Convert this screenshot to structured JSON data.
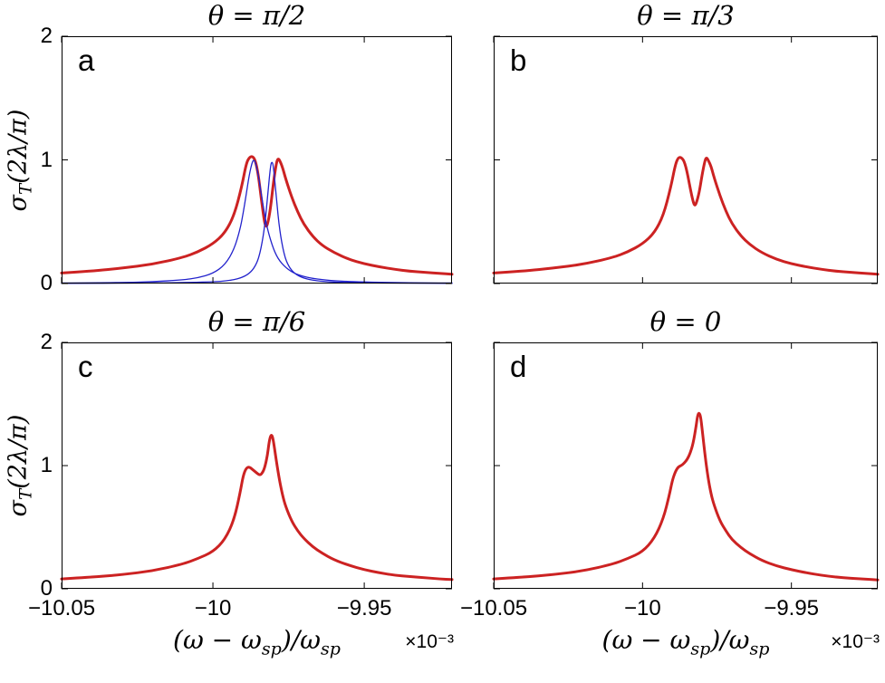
{
  "figure": {
    "background": "#ffffff",
    "axis_color": "#000000"
  },
  "chart_data": {
    "type": "line",
    "xlim": [
      -10.05,
      -9.921
    ],
    "ylim": [
      0,
      2
    ],
    "x_ticks": [
      -10.05,
      -10,
      -9.95
    ],
    "x_tick_labels": [
      "−10.05",
      "−10",
      "−9.95"
    ],
    "y_ticks": [
      0,
      1,
      2
    ],
    "y_tick_labels": [
      "0",
      "1",
      "2"
    ],
    "x_scale_note": "x values are in units of 10^-3",
    "xlabel_segments": [
      {
        "t": "(ω − ω"
      },
      {
        "t": "sp",
        "sub": true
      },
      {
        "t": ")/ω"
      },
      {
        "t": "sp",
        "sub": true
      }
    ],
    "xlabel_multiplier": "×10⁻³",
    "ylabel_segments": [
      {
        "t": "σ"
      },
      {
        "t": "T",
        "sub": true
      },
      {
        "t": "(2λ/π)"
      }
    ],
    "colors": {
      "total_cross_section": "#cc2222",
      "partial_lorentzians": "#2222cc"
    },
    "grid": false,
    "legend": "none",
    "panels": [
      {
        "letter": "a",
        "title": "θ = π/2",
        "series": [
          {
            "name": "total-cross-section",
            "color": "#cc2222",
            "width": 3,
            "dash": null,
            "points": [
              [
                -10.05,
                0.085
              ],
              [
                -10.04,
                0.1
              ],
              [
                -10.03,
                0.125
              ],
              [
                -10.02,
                0.155
              ],
              [
                -10.01,
                0.21
              ],
              [
                -10.005,
                0.255
              ],
              [
                -10.0,
                0.32
              ],
              [
                -9.996,
                0.41
              ],
              [
                -9.993,
                0.55
              ],
              [
                -9.9905,
                0.78
              ],
              [
                -9.989,
                0.97
              ],
              [
                -9.988,
                1.02
              ],
              [
                -9.987,
                1.03
              ],
              [
                -9.986,
                1.0
              ],
              [
                -9.985,
                0.88
              ],
              [
                -9.984,
                0.68
              ],
              [
                -9.983,
                0.5
              ],
              [
                -9.9825,
                0.46
              ],
              [
                -9.982,
                0.47
              ],
              [
                -9.981,
                0.6
              ],
              [
                -9.98,
                0.82
              ],
              [
                -9.979,
                0.98
              ],
              [
                -9.9785,
                1.01
              ],
              [
                -9.978,
                1.0
              ],
              [
                -9.977,
                0.94
              ],
              [
                -9.976,
                0.85
              ],
              [
                -9.974,
                0.7
              ],
              [
                -9.972,
                0.58
              ],
              [
                -9.97,
                0.48
              ],
              [
                -9.967,
                0.38
              ],
              [
                -9.964,
                0.31
              ],
              [
                -9.96,
                0.25
              ],
              [
                -9.955,
                0.195
              ],
              [
                -9.95,
                0.16
              ],
              [
                -9.945,
                0.135
              ],
              [
                -9.94,
                0.115
              ],
              [
                -9.935,
                0.1
              ],
              [
                -9.93,
                0.09
              ],
              [
                -9.925,
                0.082
              ],
              [
                -9.921,
                0.075
              ]
            ]
          },
          {
            "name": "partial-lorentzian-broad",
            "color": "#2222cc",
            "width": 1.3,
            "dash": "8 6",
            "points": [
              [
                -10.05,
                0.004
              ],
              [
                -10.03,
                0.008
              ],
              [
                -10.02,
                0.014
              ],
              [
                -10.01,
                0.029
              ],
              [
                -10.005,
                0.046
              ],
              [
                -10.0,
                0.081
              ],
              [
                -9.996,
                0.151
              ],
              [
                -9.993,
                0.275
              ],
              [
                -9.991,
                0.44
              ],
              [
                -9.99,
                0.57
              ],
              [
                -9.989,
                0.72
              ],
              [
                -9.988,
                0.88
              ],
              [
                -9.987,
                0.985
              ],
              [
                -9.9865,
                1.0
              ],
              [
                -9.986,
                0.985
              ],
              [
                -9.985,
                0.88
              ],
              [
                -9.984,
                0.72
              ],
              [
                -9.983,
                0.57
              ],
              [
                -9.982,
                0.44
              ],
              [
                -9.98,
                0.275
              ],
              [
                -9.978,
                0.18
              ],
              [
                -9.975,
                0.108
              ],
              [
                -9.972,
                0.071
              ],
              [
                -9.968,
                0.045
              ],
              [
                -9.963,
                0.028
              ],
              [
                -9.957,
                0.018
              ],
              [
                -9.95,
                0.012
              ],
              [
                -9.94,
                0.007
              ],
              [
                -9.93,
                0.005
              ],
              [
                -9.921,
                0.004
              ]
            ]
          },
          {
            "name": "partial-lorentzian-narrow",
            "color": "#2222cc",
            "width": 1.3,
            "dash": "8 6",
            "points": [
              [
                -10.05,
                0.001
              ],
              [
                -10.02,
                0.003
              ],
              [
                -10.0,
                0.013
              ],
              [
                -9.995,
                0.022
              ],
              [
                -9.991,
                0.042
              ],
              [
                -9.988,
                0.079
              ],
              [
                -9.986,
                0.138
              ],
              [
                -9.9845,
                0.232
              ],
              [
                -9.983,
                0.436
              ],
              [
                -9.982,
                0.682
              ],
              [
                -9.981,
                0.95
              ],
              [
                -9.9805,
                0.99
              ],
              [
                -9.98,
                0.95
              ],
              [
                -9.979,
                0.682
              ],
              [
                -9.978,
                0.436
              ],
              [
                -9.9765,
                0.232
              ],
              [
                -9.975,
                0.138
              ],
              [
                -9.973,
                0.079
              ],
              [
                -9.97,
                0.042
              ],
              [
                -9.966,
                0.022
              ],
              [
                -9.96,
                0.011
              ],
              [
                -9.95,
                0.005
              ],
              [
                -9.935,
                0.002
              ],
              [
                -9.921,
                0.0015
              ]
            ]
          }
        ]
      },
      {
        "letter": "b",
        "title": "θ = π/3",
        "series": [
          {
            "name": "total-cross-section",
            "color": "#cc2222",
            "width": 3,
            "dash": null,
            "points": [
              [
                -10.05,
                0.085
              ],
              [
                -10.04,
                0.1
              ],
              [
                -10.03,
                0.125
              ],
              [
                -10.02,
                0.155
              ],
              [
                -10.01,
                0.21
              ],
              [
                -10.005,
                0.255
              ],
              [
                -10.0,
                0.32
              ],
              [
                -9.996,
                0.41
              ],
              [
                -9.993,
                0.55
              ],
              [
                -9.9905,
                0.78
              ],
              [
                -9.989,
                0.96
              ],
              [
                -9.988,
                1.02
              ],
              [
                -9.987,
                1.02
              ],
              [
                -9.986,
                0.99
              ],
              [
                -9.985,
                0.9
              ],
              [
                -9.984,
                0.77
              ],
              [
                -9.983,
                0.66
              ],
              [
                -9.9825,
                0.63
              ],
              [
                -9.982,
                0.645
              ],
              [
                -9.981,
                0.73
              ],
              [
                -9.98,
                0.88
              ],
              [
                -9.979,
                1.0
              ],
              [
                -9.9785,
                1.02
              ],
              [
                -9.978,
                1.0
              ],
              [
                -9.977,
                0.95
              ],
              [
                -9.976,
                0.86
              ],
              [
                -9.974,
                0.71
              ],
              [
                -9.972,
                0.585
              ],
              [
                -9.97,
                0.485
              ],
              [
                -9.967,
                0.385
              ],
              [
                -9.964,
                0.315
              ],
              [
                -9.96,
                0.25
              ],
              [
                -9.955,
                0.195
              ],
              [
                -9.95,
                0.16
              ],
              [
                -9.945,
                0.135
              ],
              [
                -9.94,
                0.115
              ],
              [
                -9.935,
                0.1
              ],
              [
                -9.93,
                0.09
              ],
              [
                -9.925,
                0.082
              ],
              [
                -9.921,
                0.075
              ]
            ]
          }
        ]
      },
      {
        "letter": "c",
        "title": "θ = π/6",
        "series": [
          {
            "name": "total-cross-section",
            "color": "#cc2222",
            "width": 3,
            "dash": null,
            "points": [
              [
                -10.05,
                0.08
              ],
              [
                -10.04,
                0.095
              ],
              [
                -10.03,
                0.115
              ],
              [
                -10.02,
                0.145
              ],
              [
                -10.01,
                0.2
              ],
              [
                -10.005,
                0.245
              ],
              [
                -10.0,
                0.3
              ],
              [
                -9.996,
                0.4
              ],
              [
                -9.993,
                0.56
              ],
              [
                -9.991,
                0.78
              ],
              [
                -9.99,
                0.92
              ],
              [
                -9.989,
                0.98
              ],
              [
                -9.988,
                0.99
              ],
              [
                -9.987,
                0.97
              ],
              [
                -9.986,
                0.95
              ],
              [
                -9.985,
                0.93
              ],
              [
                -9.9845,
                0.925
              ],
              [
                -9.984,
                0.93
              ],
              [
                -9.983,
                0.97
              ],
              [
                -9.982,
                1.08
              ],
              [
                -9.9815,
                1.18
              ],
              [
                -9.981,
                1.24
              ],
              [
                -9.9805,
                1.25
              ],
              [
                -9.98,
                1.2
              ],
              [
                -9.979,
                1.03
              ],
              [
                -9.978,
                0.88
              ],
              [
                -9.977,
                0.76
              ],
              [
                -9.976,
                0.67
              ],
              [
                -9.974,
                0.55
              ],
              [
                -9.972,
                0.47
              ],
              [
                -9.97,
                0.41
              ],
              [
                -9.967,
                0.34
              ],
              [
                -9.964,
                0.29
              ],
              [
                -9.96,
                0.235
              ],
              [
                -9.955,
                0.19
              ],
              [
                -9.95,
                0.155
              ],
              [
                -9.945,
                0.13
              ],
              [
                -9.94,
                0.11
              ],
              [
                -9.935,
                0.1
              ],
              [
                -9.93,
                0.09
              ],
              [
                -9.925,
                0.08
              ],
              [
                -9.921,
                0.075
              ]
            ]
          }
        ]
      },
      {
        "letter": "d",
        "title": "θ = 0",
        "series": [
          {
            "name": "total-cross-section",
            "color": "#cc2222",
            "width": 3,
            "dash": null,
            "points": [
              [
                -10.05,
                0.08
              ],
              [
                -10.04,
                0.095
              ],
              [
                -10.03,
                0.115
              ],
              [
                -10.02,
                0.145
              ],
              [
                -10.01,
                0.2
              ],
              [
                -10.005,
                0.245
              ],
              [
                -10.0,
                0.3
              ],
              [
                -9.996,
                0.41
              ],
              [
                -9.993,
                0.57
              ],
              [
                -9.991,
                0.76
              ],
              [
                -9.99,
                0.88
              ],
              [
                -9.989,
                0.95
              ],
              [
                -9.988,
                0.99
              ],
              [
                -9.987,
                1.0
              ],
              [
                -9.986,
                1.02
              ],
              [
                -9.985,
                1.05
              ],
              [
                -9.984,
                1.1
              ],
              [
                -9.983,
                1.18
              ],
              [
                -9.982,
                1.32
              ],
              [
                -9.9815,
                1.41
              ],
              [
                -9.981,
                1.43
              ],
              [
                -9.9805,
                1.4
              ],
              [
                -9.98,
                1.3
              ],
              [
                -9.979,
                1.08
              ],
              [
                -9.978,
                0.9
              ],
              [
                -9.977,
                0.77
              ],
              [
                -9.976,
                0.68
              ],
              [
                -9.974,
                0.55
              ],
              [
                -9.972,
                0.47
              ],
              [
                -9.97,
                0.4
              ],
              [
                -9.967,
                0.335
              ],
              [
                -9.964,
                0.285
              ],
              [
                -9.96,
                0.23
              ],
              [
                -9.955,
                0.185
              ],
              [
                -9.95,
                0.155
              ],
              [
                -9.945,
                0.13
              ],
              [
                -9.94,
                0.11
              ],
              [
                -9.935,
                0.095
              ],
              [
                -9.93,
                0.085
              ],
              [
                -9.925,
                0.078
              ],
              [
                -9.921,
                0.072
              ]
            ]
          }
        ]
      }
    ]
  }
}
